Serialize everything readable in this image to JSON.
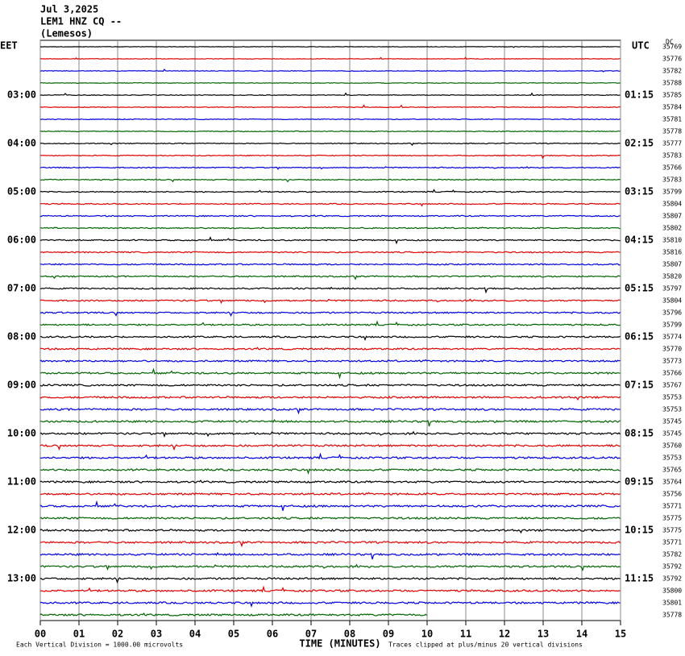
{
  "header": {
    "date": "Jul 3,2025",
    "station": "LEM1 HNZ CQ --",
    "location": "(Lemesos)",
    "left_zone": "EET",
    "right_zone": "UTC",
    "dc_heading": "DC"
  },
  "chart_data": {
    "type": "helicorder",
    "colors": [
      "#000000",
      "#e00000",
      "#0000e0",
      "#006400"
    ],
    "left_labels": [
      "03:00",
      "04:00",
      "05:00",
      "06:00",
      "07:00",
      "08:00",
      "09:00",
      "10:00",
      "11:00",
      "12:00",
      "13:00"
    ],
    "right_labels": [
      "01:15",
      "02:15",
      "03:15",
      "04:15",
      "05:15",
      "06:15",
      "07:15",
      "08:15",
      "09:15",
      "10:15",
      "11:15"
    ],
    "dc_values": [
      35769,
      35776,
      35782,
      35788,
      35785,
      35784,
      35781,
      35778,
      35777,
      35783,
      35766,
      35783,
      35799,
      35804,
      35807,
      35802,
      35810,
      35816,
      35807,
      35820,
      35797,
      35804,
      35796,
      35799,
      35774,
      35770,
      35773,
      35766,
      35767,
      35753,
      35753,
      35745,
      35745,
      35760,
      35753,
      35765,
      35764,
      35756,
      35771,
      35775,
      35775,
      35771,
      35782,
      35792,
      35792,
      35800,
      35801,
      35778
    ],
    "xlim": [
      0,
      15
    ],
    "xticks": [
      {
        "value": 0,
        "label": "00"
      },
      {
        "value": 1,
        "label": "01"
      },
      {
        "value": 2,
        "label": "02"
      },
      {
        "value": 3,
        "label": "03"
      },
      {
        "value": 4,
        "label": "04"
      },
      {
        "value": 5,
        "label": "05"
      },
      {
        "value": 6,
        "label": "06"
      },
      {
        "value": 7,
        "label": "07"
      },
      {
        "value": 8,
        "label": "08"
      },
      {
        "value": 9,
        "label": "09"
      },
      {
        "value": 10,
        "label": "10"
      },
      {
        "value": 11,
        "label": "11"
      },
      {
        "value": 12,
        "label": "12"
      },
      {
        "value": 13,
        "label": "13"
      },
      {
        "value": 14,
        "label": "14"
      },
      {
        "value": 15,
        "label": "15"
      }
    ],
    "x_label": "TIME (MINUTES)",
    "scale_note": "Each Vertical Division = 1000.00 microvolts",
    "clip_note": "Traces clipped at plus/minus 20 vertical divisions"
  }
}
